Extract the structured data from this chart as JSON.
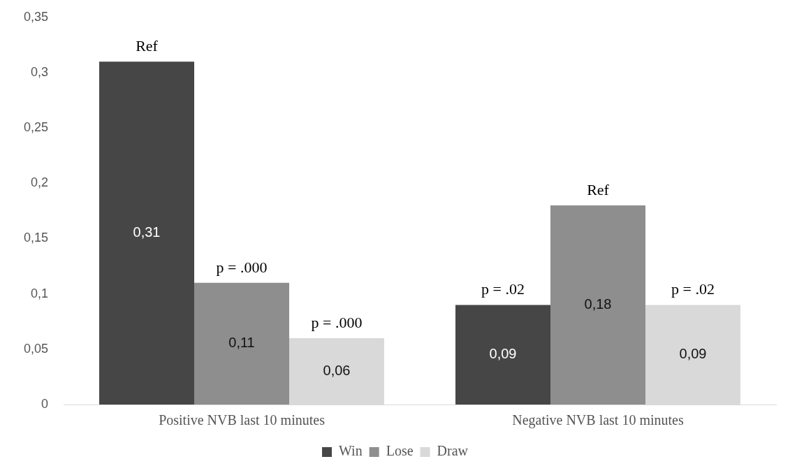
{
  "chart_data": {
    "type": "bar",
    "categories": [
      "Positive NVB last 10 minutes",
      "Negative NVB last 10 minutes"
    ],
    "series": [
      {
        "name": "Win",
        "color": "#464646",
        "values": [
          0.31,
          0.09
        ],
        "value_labels": [
          "0,31",
          "0,09"
        ]
      },
      {
        "name": "Lose",
        "color": "#8e8e8e",
        "values": [
          0.11,
          0.18
        ],
        "value_labels": [
          "0,11",
          "0,18"
        ]
      },
      {
        "name": "Draw",
        "color": "#d9d9d9",
        "values": [
          0.06,
          0.09
        ],
        "value_labels": [
          "0,06",
          "0,09"
        ]
      }
    ],
    "ylim": [
      0,
      0.35
    ],
    "yticks": [
      0,
      {
        "value": 0.05,
        "label": "0,05"
      },
      {
        "value": 0.1,
        "label": "0,1"
      },
      {
        "value": 0.15,
        "label": "0,15"
      },
      {
        "value": 0.2,
        "label": "0,2"
      },
      {
        "value": 0.25,
        "label": "0,25"
      },
      {
        "value": 0.3,
        "label": "0,3"
      },
      {
        "value": 0.35,
        "label": "0,35"
      }
    ],
    "legend": "bottom",
    "annotations": [
      "Ref",
      "p = .000",
      "p = .000",
      "p = .02",
      "Ref",
      "p = .02"
    ]
  }
}
